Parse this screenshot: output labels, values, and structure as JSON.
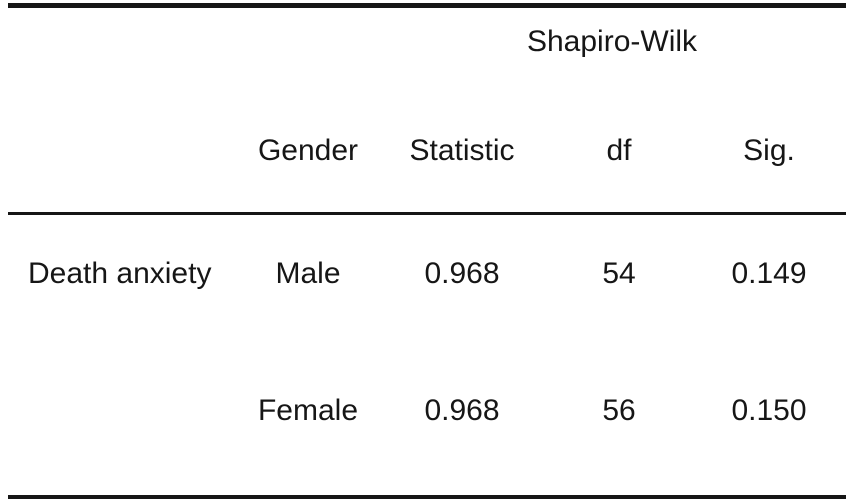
{
  "table": {
    "span_header": "Shapiro-Wilk",
    "columns": [
      "",
      "Gender",
      "Statistic",
      "df",
      "Sig."
    ],
    "rows": [
      {
        "label": "Death anxiety",
        "gender": "Male",
        "statistic": "0.968",
        "df": "54",
        "sig": "0.149"
      },
      {
        "label": "",
        "gender": "Female",
        "statistic": "0.968",
        "df": "56",
        "sig": "0.150"
      }
    ]
  }
}
